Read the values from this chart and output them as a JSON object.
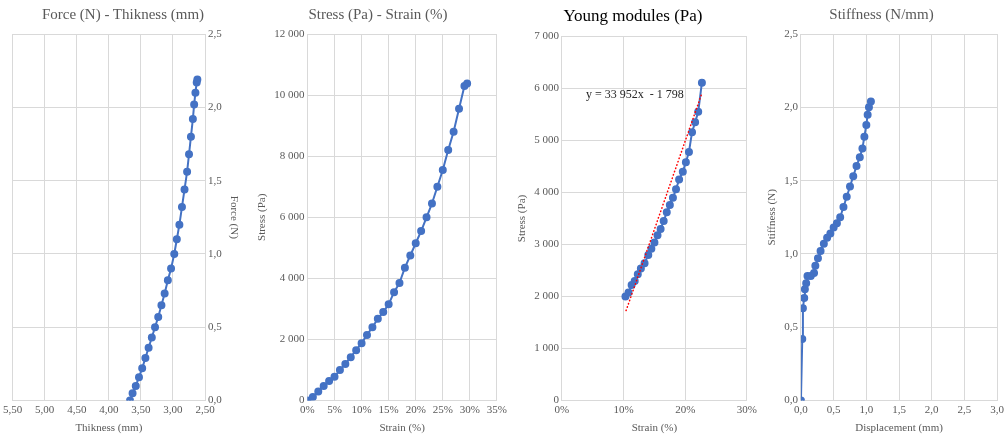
{
  "chart_data": [
    {
      "type": "line",
      "title": "Force (N) - Thikness (mm)",
      "xlabel": "Thikness (mm)",
      "ylabel": "Force (N)",
      "marker": "circle",
      "line_style": "solid",
      "grid": true,
      "xlim": [
        5.5,
        2.5
      ],
      "xticks": [
        {
          "value": 5.5,
          "label": "5,50"
        },
        {
          "value": 5,
          "label": "5,00"
        },
        {
          "value": 4.5,
          "label": "4,50"
        },
        {
          "value": 4,
          "label": "4,00"
        },
        {
          "value": 3.5,
          "label": "3,50"
        },
        {
          "value": 3,
          "label": "3,00"
        },
        {
          "value": 2.5,
          "label": "2,50"
        }
      ],
      "ylim": [
        0,
        2.5
      ],
      "yticks": [
        {
          "value": 0,
          "label": "0,0"
        },
        {
          "value": 0.5,
          "label": "0,5"
        },
        {
          "value": 1,
          "label": "1,0"
        },
        {
          "value": 1.5,
          "label": "1,5"
        },
        {
          "value": 2,
          "label": "2,0"
        },
        {
          "value": 2.5,
          "label": "2,5"
        }
      ],
      "series": [
        {
          "color": "#4472c4",
          "x": [
            3.67,
            3.63,
            3.58,
            3.53,
            3.48,
            3.43,
            3.38,
            3.33,
            3.28,
            3.23,
            3.18,
            3.13,
            3.08,
            3.03,
            2.98,
            2.94,
            2.9,
            2.86,
            2.82,
            2.78,
            2.75,
            2.72,
            2.69,
            2.67,
            2.65,
            2.63,
            2.62
          ],
          "values": [
            0,
            0.05,
            0.1,
            0.16,
            0.22,
            0.29,
            0.36,
            0.43,
            0.5,
            0.57,
            0.65,
            0.73,
            0.82,
            0.9,
            1.0,
            1.1,
            1.2,
            1.32,
            1.44,
            1.56,
            1.68,
            1.8,
            1.92,
            2.02,
            2.1,
            2.17,
            2.19
          ]
        }
      ]
    },
    {
      "type": "line",
      "title": "Stress (Pa) - Strain (%)",
      "xlabel": "Strain (%)",
      "ylabel": "Stress (Pa)",
      "marker": "circle",
      "line_style": "solid",
      "grid": true,
      "xlim": [
        0,
        35
      ],
      "xticks": [
        {
          "value": 0,
          "label": "0%"
        },
        {
          "value": 5,
          "label": "5%"
        },
        {
          "value": 10,
          "label": "10%"
        },
        {
          "value": 15,
          "label": "15%"
        },
        {
          "value": 20,
          "label": "20%"
        },
        {
          "value": 25,
          "label": "25%"
        },
        {
          "value": 30,
          "label": "30%"
        },
        {
          "value": 35,
          "label": "35%"
        }
      ],
      "ylim": [
        0,
        12000
      ],
      "yticks": [
        0,
        {
          "value": 2000,
          "label": "2 000"
        },
        {
          "value": 4000,
          "label": "4 000"
        },
        {
          "value": 6000,
          "label": "6 000"
        },
        {
          "value": 8000,
          "label": "8 000"
        },
        {
          "value": 10000,
          "label": "10 000"
        },
        {
          "value": 12000,
          "label": "12 000"
        }
      ],
      "series": [
        {
          "color": "#4472c4",
          "x": [
            0,
            1,
            2,
            3,
            4,
            5,
            6,
            7,
            8,
            9,
            10,
            11,
            12,
            13,
            14,
            15,
            16,
            17,
            18,
            19,
            20,
            21,
            22,
            23,
            24,
            25,
            26,
            27,
            28,
            29,
            29.5
          ],
          "values": [
            0,
            120,
            300,
            480,
            640,
            780,
            1000,
            1200,
            1420,
            1650,
            1880,
            2150,
            2400,
            2680,
            2900,
            3150,
            3550,
            3850,
            4350,
            4750,
            5150,
            5550,
            6000,
            6450,
            7000,
            7550,
            8200,
            8800,
            9550,
            10300,
            10380
          ]
        }
      ]
    },
    {
      "type": "line",
      "title": "Young modules (Pa)",
      "xlabel": "Strain (%)",
      "ylabel": "Stress (Pa)",
      "grid": true,
      "annotations": [
        "y = 33 952x  - 1 798"
      ],
      "xlim": [
        0,
        30
      ],
      "xticks": [
        {
          "value": 0,
          "label": "0%"
        },
        {
          "value": 10,
          "label": "10%"
        },
        {
          "value": 20,
          "label": "20%"
        },
        {
          "value": 30,
          "label": "30%"
        }
      ],
      "ylim": [
        0,
        7000
      ],
      "yticks": [
        0,
        {
          "value": 1000,
          "label": "1 000"
        },
        {
          "value": 2000,
          "label": "2 000"
        },
        {
          "value": 3000,
          "label": "3 000"
        },
        {
          "value": 4000,
          "label": "4 000"
        },
        {
          "value": 5000,
          "label": "5 000"
        },
        {
          "value": 6000,
          "label": "6 000"
        },
        {
          "value": 7000,
          "label": "7 000"
        }
      ],
      "series": [
        {
          "color": "#4472c4",
          "marker": "circle",
          "line_style": "solid",
          "x": [
            10.3,
            10.8,
            11.3,
            11.8,
            12.3,
            12.8,
            13.4,
            14.0,
            14.5,
            15.0,
            15.5,
            16.0,
            16.5,
            17.0,
            17.5,
            18.0,
            18.5,
            19.0,
            19.6,
            20.1,
            20.6,
            21.1,
            21.6,
            22.1,
            22.7
          ],
          "values": [
            2000,
            2080,
            2220,
            2300,
            2430,
            2540,
            2640,
            2800,
            2920,
            3040,
            3180,
            3300,
            3450,
            3620,
            3760,
            3900,
            4060,
            4250,
            4400,
            4580,
            4780,
            5160,
            5350,
            5550,
            6110
          ]
        },
        {
          "type": "line",
          "color": "#ff0000",
          "marker": "none",
          "line_style": "dotted",
          "x": [
            10.4,
            22.7
          ],
          "values": [
            1730,
            5910
          ]
        }
      ]
    },
    {
      "type": "line",
      "title": "Stiffness (N/mm)",
      "xlabel": "Displacement (mm)",
      "ylabel": "Stiffness (N)",
      "marker": "circle",
      "line_style": "solid",
      "grid": true,
      "xlim": [
        0,
        3
      ],
      "xticks": [
        {
          "value": 0,
          "label": "0,0"
        },
        {
          "value": 0.5,
          "label": "0,5"
        },
        {
          "value": 1,
          "label": "1,0"
        },
        {
          "value": 1.5,
          "label": "1,5"
        },
        {
          "value": 2,
          "label": "2,0"
        },
        {
          "value": 2.5,
          "label": "2,5"
        },
        {
          "value": 3,
          "label": "3,0"
        }
      ],
      "ylim": [
        0,
        2.5
      ],
      "yticks": [
        {
          "value": 0,
          "label": "0,0"
        },
        {
          "value": 0.5,
          "label": "0,5"
        },
        {
          "value": 1,
          "label": "1,0"
        },
        {
          "value": 1.5,
          "label": "1,5"
        },
        {
          "value": 2,
          "label": "2,0"
        },
        {
          "value": 2.5,
          "label": "2,5"
        }
      ],
      "series": [
        {
          "color": "#4472c4",
          "x": [
            0,
            0.02,
            0.03,
            0.05,
            0.06,
            0.08,
            0.1,
            0.15,
            0.2,
            0.22,
            0.26,
            0.3,
            0.35,
            0.4,
            0.45,
            0.5,
            0.55,
            0.6,
            0.65,
            0.7,
            0.75,
            0.8,
            0.85,
            0.9,
            0.94,
            0.97,
            1.0,
            1.02,
            1.04,
            1.07
          ],
          "values": [
            0,
            0.42,
            0.63,
            0.7,
            0.76,
            0.8,
            0.85,
            0.85,
            0.87,
            0.92,
            0.97,
            1.02,
            1.07,
            1.11,
            1.14,
            1.18,
            1.21,
            1.25,
            1.32,
            1.39,
            1.46,
            1.53,
            1.6,
            1.66,
            1.72,
            1.8,
            1.88,
            1.95,
            2.0,
            2.04
          ]
        }
      ]
    }
  ]
}
